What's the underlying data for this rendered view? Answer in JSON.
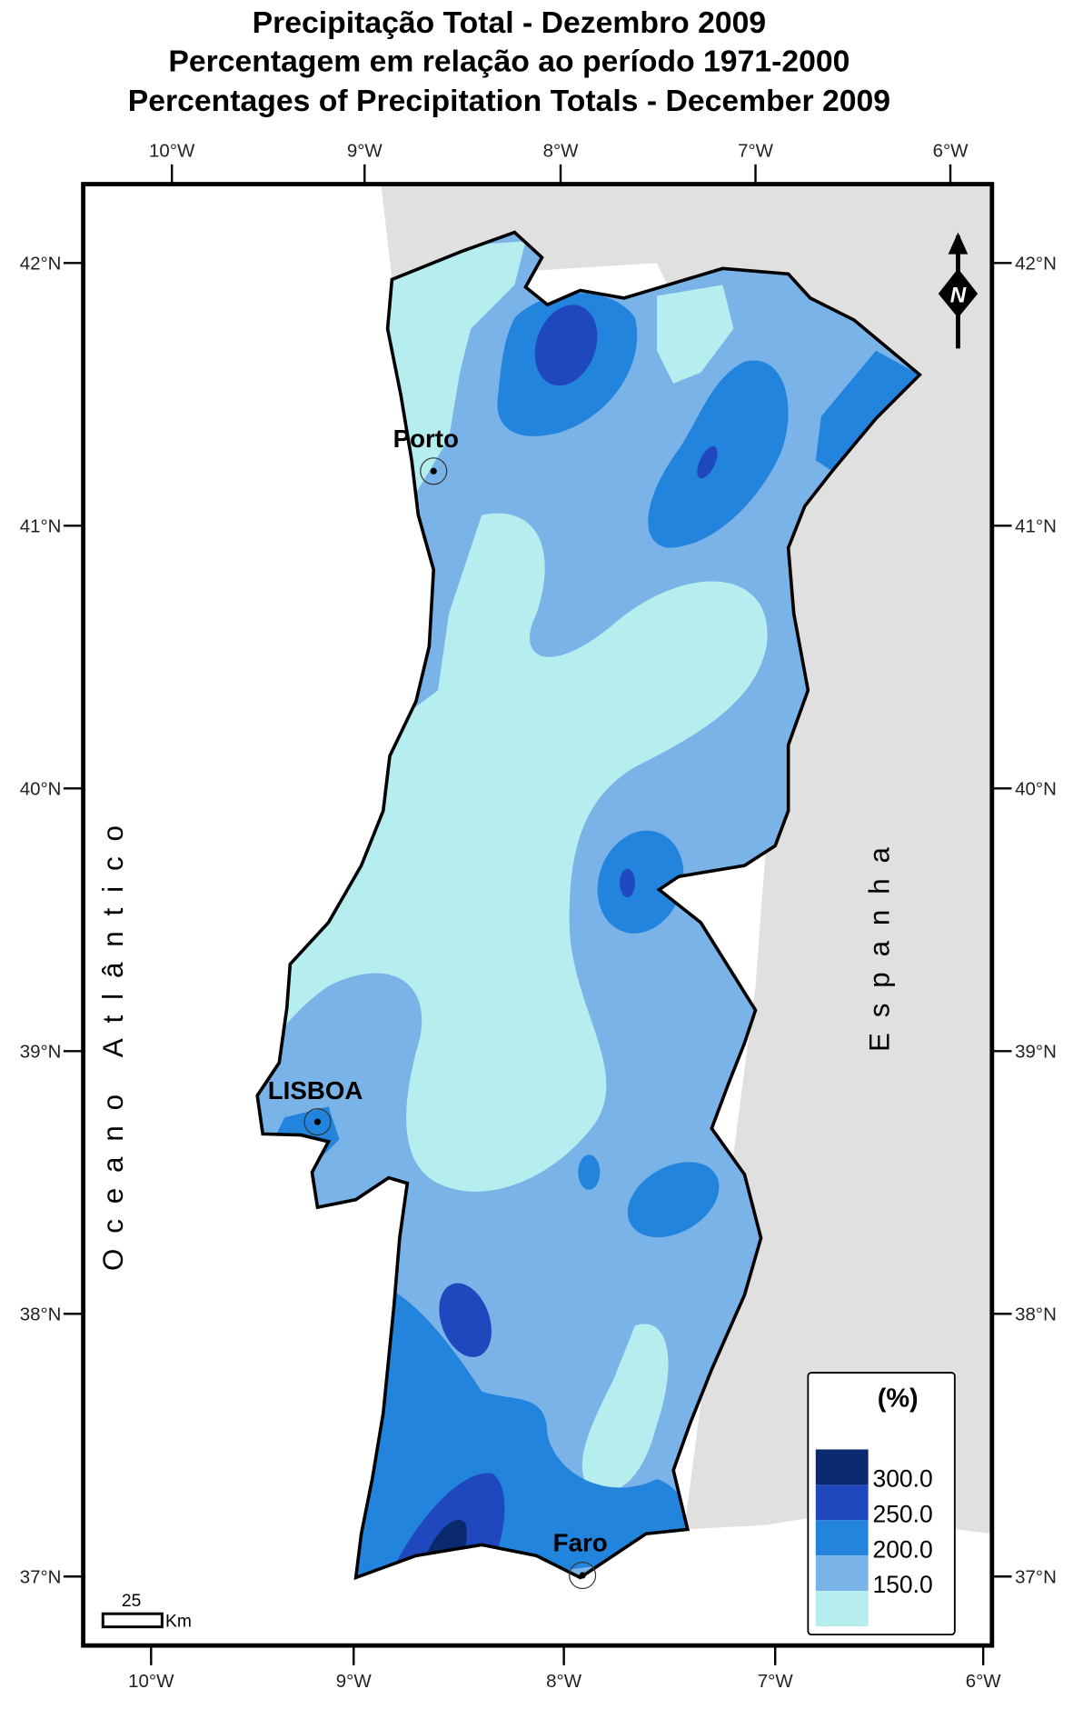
{
  "title": [
    "Precipitação Total - Dezembro 2009",
    "Percentagem em relação ao período 1971-2000",
    "Percentages of Precipitation Totals -  December 2009"
  ],
  "longitude_labels": [
    "10°W",
    "9°W",
    "8°W",
    "7°W",
    "6°W"
  ],
  "latitude_labels": [
    "42°N",
    "41°N",
    "40°N",
    "39°N",
    "38°N",
    "37°N"
  ],
  "regions": [
    "Oceano Atlântico",
    "Espanha"
  ],
  "cities": [
    "Porto",
    "LISBOA",
    "Faro"
  ],
  "north_arrow": "N",
  "scale_bar": {
    "distance": "25",
    "unit": "Km"
  },
  "legend": {
    "title": "(%)",
    "items": [
      {
        "label": "300.0",
        "color": "#0b2a6e"
      },
      {
        "label": "250.0",
        "color": "#1f48be"
      },
      {
        "label": "200.0",
        "color": "#2384de"
      },
      {
        "label": "150.0",
        "color": "#7ab3e8"
      },
      {
        "color": "#b6eef0"
      }
    ]
  }
}
